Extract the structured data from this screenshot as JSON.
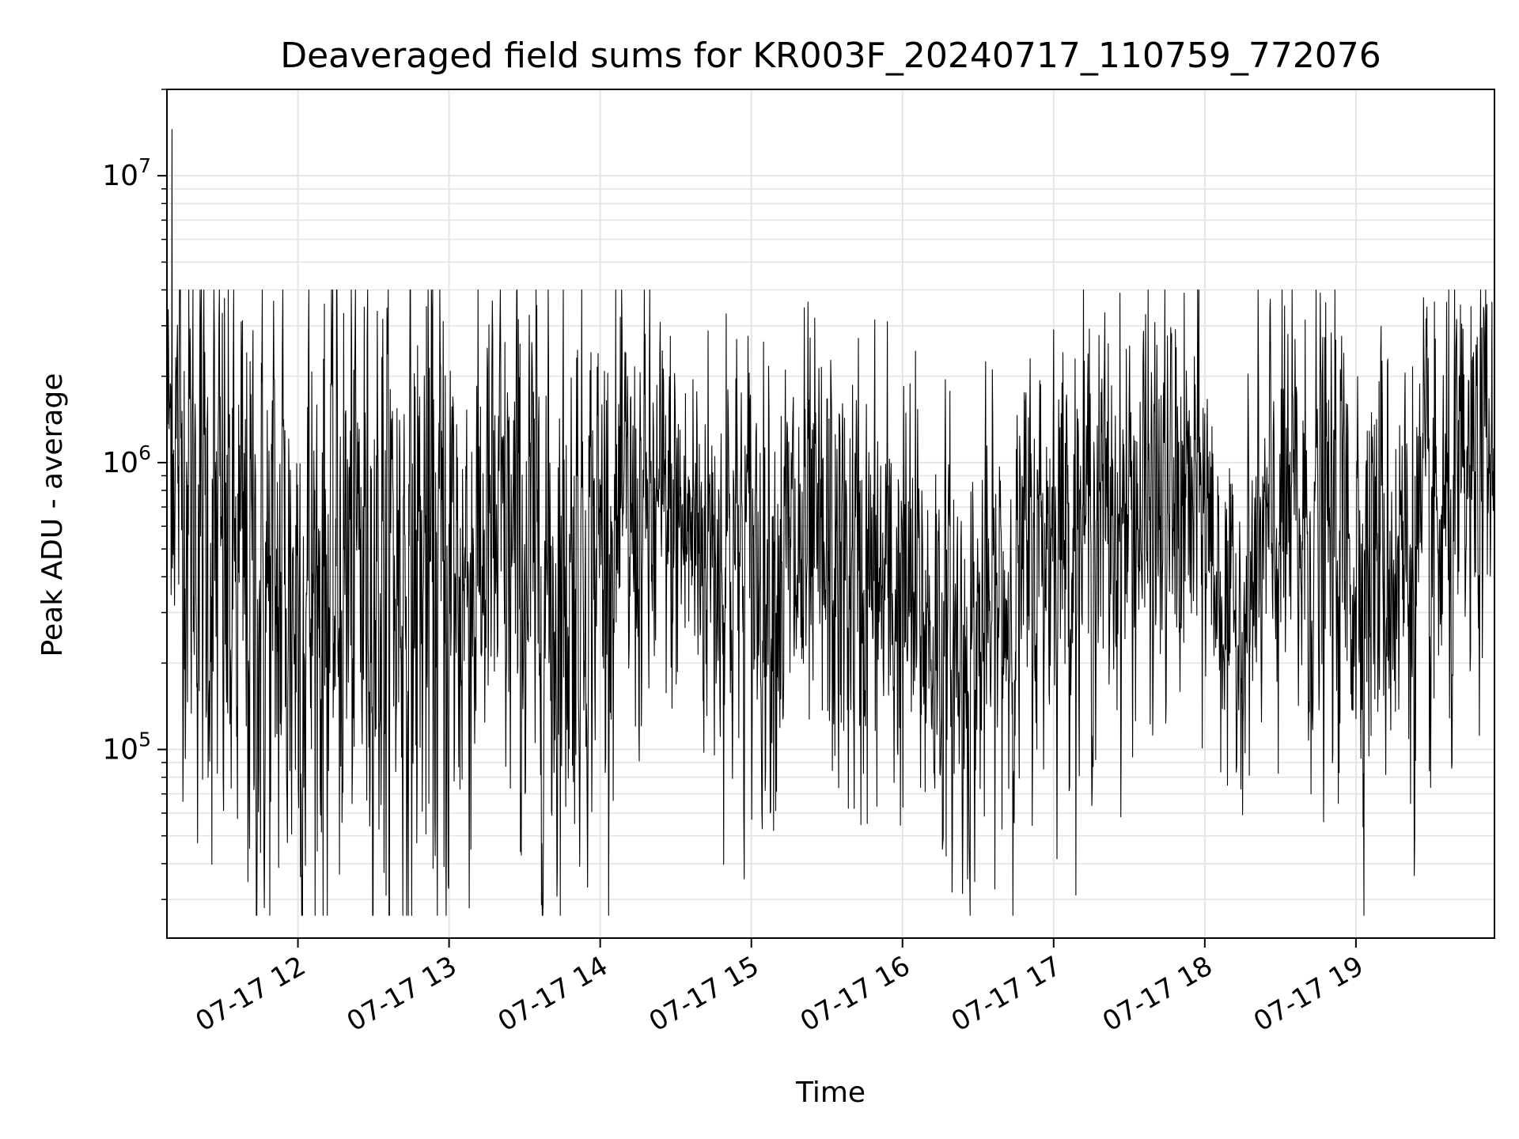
{
  "chart_data": {
    "type": "line",
    "title": "Deaveraged field sums for KR003F_20240717_110759_772076",
    "xlabel": "Time",
    "ylabel": "Peak ADU - average",
    "yscale": "log",
    "ylim": [
      22000,
      20000000
    ],
    "xlim": [
      "2024-07-17 11:08",
      "2024-07-17 19:55"
    ],
    "grid": true,
    "line_color": "#000000",
    "y_major_ticks": [
      {
        "value": 100000,
        "base": "10",
        "exp": "5"
      },
      {
        "value": 1000000,
        "base": "10",
        "exp": "6"
      },
      {
        "value": 10000000,
        "base": "10",
        "exp": "7"
      }
    ],
    "x_ticks": [
      {
        "time": "2024-07-17 12:00",
        "label": "07-17 12"
      },
      {
        "time": "2024-07-17 13:00",
        "label": "07-17 13"
      },
      {
        "time": "2024-07-17 14:00",
        "label": "07-17 14"
      },
      {
        "time": "2024-07-17 15:00",
        "label": "07-17 15"
      },
      {
        "time": "2024-07-17 16:00",
        "label": "07-17 16"
      },
      {
        "time": "2024-07-17 17:00",
        "label": "07-17 17"
      },
      {
        "time": "2024-07-17 18:00",
        "label": "07-17 18"
      },
      {
        "time": "2024-07-17 19:00",
        "label": "07-17 19"
      }
    ],
    "series": [
      {
        "interval_seconds": 10,
        "start": "2024-07-17 11:08",
        "end": "2024-07-17 19:55",
        "envelope": [
          {
            "time": "2024-07-17 11:08",
            "median": 1500000,
            "spread_decades": 0.35
          },
          {
            "time": "2024-07-17 11:15",
            "median": 900000,
            "spread_decades": 0.6
          },
          {
            "time": "2024-07-17 11:30",
            "median": 400000,
            "spread_decades": 0.7
          },
          {
            "time": "2024-07-17 11:45",
            "median": 300000,
            "spread_decades": 0.7
          },
          {
            "time": "2024-07-17 12:00",
            "median": 350000,
            "spread_decades": 0.75
          },
          {
            "time": "2024-07-17 12:30",
            "median": 450000,
            "spread_decades": 0.7
          },
          {
            "time": "2024-07-17 13:00",
            "median": 350000,
            "spread_decades": 0.75
          },
          {
            "time": "2024-07-17 13:15",
            "median": 500000,
            "spread_decades": 0.55
          },
          {
            "time": "2024-07-17 13:40",
            "median": 350000,
            "spread_decades": 0.7
          },
          {
            "time": "2024-07-17 14:00",
            "median": 550000,
            "spread_decades": 0.5
          },
          {
            "time": "2024-07-17 14:30",
            "median": 600000,
            "spread_decades": 0.45
          },
          {
            "time": "2024-07-17 15:00",
            "median": 450000,
            "spread_decades": 0.5
          },
          {
            "time": "2024-07-17 15:30",
            "median": 400000,
            "spread_decades": 0.5
          },
          {
            "time": "2024-07-17 16:00",
            "median": 330000,
            "spread_decades": 0.5
          },
          {
            "time": "2024-07-17 16:25",
            "median": 200000,
            "spread_decades": 0.45
          },
          {
            "time": "2024-07-17 16:45",
            "median": 350000,
            "spread_decades": 0.45
          },
          {
            "time": "2024-07-17 17:00",
            "median": 600000,
            "spread_decades": 0.45
          },
          {
            "time": "2024-07-17 17:30",
            "median": 650000,
            "spread_decades": 0.45
          },
          {
            "time": "2024-07-17 18:00",
            "median": 700000,
            "spread_decades": 0.45
          },
          {
            "time": "2024-07-17 18:10",
            "median": 250000,
            "spread_decades": 0.3
          },
          {
            "time": "2024-07-17 18:30",
            "median": 600000,
            "spread_decades": 0.5
          },
          {
            "time": "2024-07-17 19:00",
            "median": 500000,
            "spread_decades": 0.5
          },
          {
            "time": "2024-07-17 19:30",
            "median": 450000,
            "spread_decades": 0.5
          },
          {
            "time": "2024-07-17 19:55",
            "median": 1000000,
            "spread_decades": 0.4
          }
        ],
        "peaks": [
          {
            "time": "2024-07-17 11:10",
            "value": 14500000
          },
          {
            "time": "2024-07-17 11:54",
            "value": 4000000
          },
          {
            "time": "2024-07-17 12:51",
            "value": 3500000
          },
          {
            "time": "2024-07-17 14:50",
            "value": 3300000
          },
          {
            "time": "2024-07-17 17:00",
            "value": 2900000
          },
          {
            "time": "2024-07-17 18:33",
            "value": 2800000
          },
          {
            "time": "2024-07-17 19:50",
            "value": 2950000
          }
        ],
        "troughs": [
          {
            "time": "2024-07-17 12:01",
            "value": 36000
          },
          {
            "time": "2024-07-17 12:35",
            "value": 31000
          },
          {
            "time": "2024-07-17 12:58",
            "value": 39000
          },
          {
            "time": "2024-07-17 13:43",
            "value": 39000
          },
          {
            "time": "2024-07-17 14:57",
            "value": 60000
          },
          {
            "time": "2024-07-17 16:24",
            "value": 62000
          },
          {
            "time": "2024-07-17 18:09",
            "value": 75000
          },
          {
            "time": "2024-07-17 19:38",
            "value": 86000
          }
        ]
      }
    ]
  }
}
